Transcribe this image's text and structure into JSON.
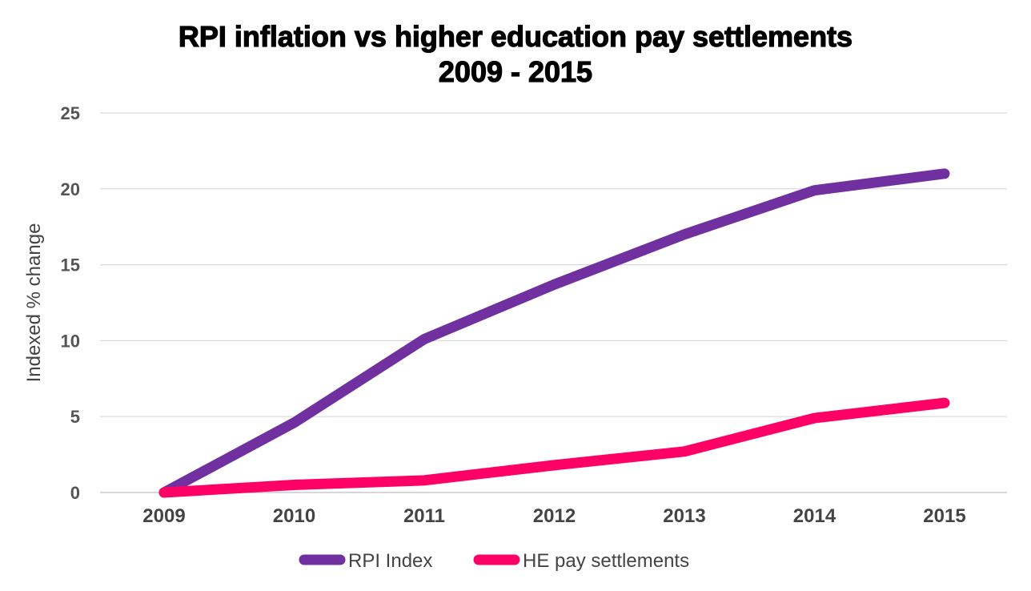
{
  "chart_data": {
    "type": "line",
    "title": [
      "RPI inflation vs higher education pay settlements",
      "2009 - 2015"
    ],
    "xlabel": "",
    "ylabel": "Indexed % change",
    "categories": [
      "2009",
      "2010",
      "2011",
      "2012",
      "2013",
      "2014",
      "2015"
    ],
    "ylim": [
      0,
      25
    ],
    "yticks": [
      0,
      5,
      10,
      15,
      20,
      25
    ],
    "grid": true,
    "legend_position": "bottom",
    "series": [
      {
        "name": "RPI Index",
        "color": "#7030A0",
        "values": [
          0,
          4.6,
          10.1,
          13.7,
          17.0,
          19.9,
          21.0
        ]
      },
      {
        "name": "HE pay settlements",
        "color": "#FF0066",
        "values": [
          0,
          0.5,
          0.8,
          1.8,
          2.7,
          4.9,
          5.9
        ]
      }
    ]
  }
}
